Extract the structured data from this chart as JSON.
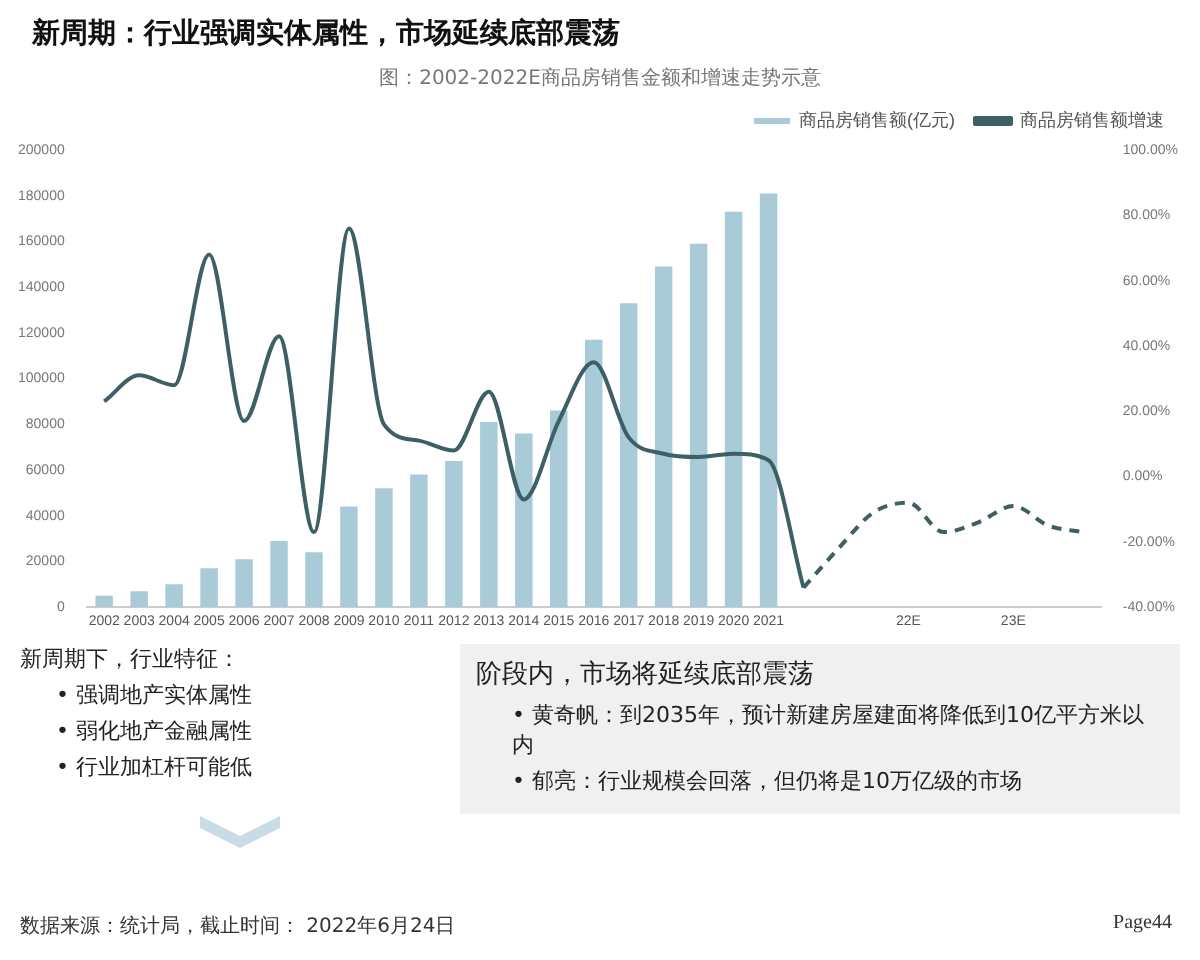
{
  "chart_data": {
    "type": "bar",
    "title": "新周期：行业强调实体属性，市场延续底部震荡",
    "subtitle": "图：2002-2022E商品房销售金额和增速走势示意",
    "categories": [
      "2002",
      "2003",
      "2004",
      "2005",
      "2006",
      "2007",
      "2008",
      "2009",
      "2010",
      "2011",
      "2012",
      "2013",
      "2014",
      "2015",
      "2016",
      "2017",
      "2018",
      "2019",
      "2020",
      "2021",
      null,
      null,
      null,
      "22E",
      null,
      null,
      "23E",
      null,
      null
    ],
    "series": [
      {
        "name": "商品房销售额(亿元)",
        "color": "#a9cbd8",
        "values": [
          5000,
          7000,
          10000,
          17000,
          21000,
          29000,
          24000,
          44000,
          52000,
          58000,
          64000,
          81000,
          76000,
          86000,
          117000,
          133000,
          149000,
          159000,
          173000,
          181000,
          null,
          null,
          null,
          null,
          null,
          null,
          null,
          null,
          null
        ]
      },
      {
        "name": "商品房销售额增速",
        "type": "line",
        "axis": "y2",
        "color": "#3d5f66",
        "line_style": "solid",
        "values": [
          23,
          31,
          28,
          68,
          17,
          43,
          -17,
          76,
          16,
          11,
          8,
          26,
          -7,
          17,
          35,
          12,
          7,
          6,
          7,
          5,
          -34,
          null,
          null,
          null,
          null,
          null,
          null,
          null,
          null
        ]
      },
      {
        "type": "line",
        "axis": "y2",
        "color": "#3d5f66",
        "line_style": "dashed",
        "values": [
          null,
          null,
          null,
          null,
          null,
          null,
          null,
          null,
          null,
          null,
          null,
          null,
          null,
          null,
          null,
          null,
          null,
          null,
          null,
          null,
          -34,
          -22,
          -11,
          -8,
          -17,
          -14,
          -9,
          -15,
          -17
        ]
      }
    ],
    "ylim": [
      0,
      200000
    ],
    "yticks": [
      0,
      20000,
      40000,
      60000,
      80000,
      100000,
      120000,
      140000,
      160000,
      180000,
      200000
    ],
    "y2lim": [
      -40,
      100
    ],
    "y2ticks": [
      {
        "value": -40,
        "label": "-40.00%"
      },
      {
        "value": -20,
        "label": "-20.00%"
      },
      {
        "value": 0,
        "label": "0.00%"
      },
      {
        "value": 20,
        "label": "20.00%"
      },
      {
        "value": 40,
        "label": "40.00%"
      },
      {
        "value": 60,
        "label": "60.00%"
      },
      {
        "value": 80,
        "label": "80.00%"
      },
      {
        "value": 100,
        "label": "100.00%"
      }
    ],
    "grid": false,
    "legend": "top right",
    "marker": "none",
    "annotations": [
      "新周期下，行业特征：",
      "• 强调地产实体属性",
      "• 弱化地产金融属性",
      "• 行业加杠杆可能低",
      "阶段内，市场将延续底部震荡",
      "• 黄奇帆：到2035年，预计新建房屋建面将降低到10亿平方米以内",
      "• 郁亮：行业规模会回落，但仍将是10万亿级的市场",
      "数据来源：统计局，截止时间： 2022年6月24日",
      "Page44"
    ]
  }
}
